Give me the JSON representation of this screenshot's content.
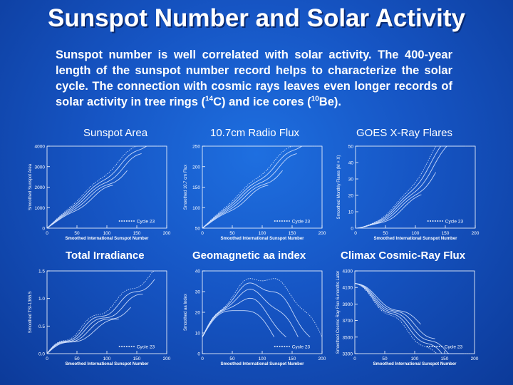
{
  "title": "Sunspot Number and Solar Activity",
  "paragraph": {
    "part1": "Sunspot number is well correlated with solar activity. The 400-year length of the sunspot number record helps to characterize the solar cycle. The connection with cosmic rays leaves even longer records of solar activity in tree rings (",
    "sup1": "14",
    "part2": "C) and ice cores (",
    "sup2": "10",
    "part3": "Be)."
  },
  "panels": [
    {
      "heading": "Sunspot Area",
      "ylabel": "Smoothed Sunspot Area",
      "xlabel": "Smoothed International Sunspot Number",
      "legend": "Cycle 23",
      "yticks": [
        "0",
        "1000",
        "2000",
        "3000",
        "4000"
      ],
      "xticks": [
        "0",
        "50",
        "100",
        "150",
        "200"
      ]
    },
    {
      "heading": "10.7cm Radio Flux",
      "ylabel": "Smoothed 10.7 cm Flux",
      "xlabel": "Smoothed International Sunspot Number",
      "legend": "Cycle 23",
      "yticks": [
        "50",
        "100",
        "150",
        "200",
        "250"
      ],
      "xticks": [
        "0",
        "50",
        "100",
        "150",
        "200"
      ]
    },
    {
      "heading": "GOES X-Ray Flares",
      "ylabel": "Smoothed Monthly Flares (M + X)",
      "xlabel": "Smoothed International Sunspot Number",
      "legend": "Cycle 23",
      "yticks": [
        "0",
        "10",
        "20",
        "30",
        "40",
        "50"
      ],
      "xticks": [
        "0",
        "50",
        "100",
        "150",
        "200"
      ]
    },
    {
      "heading": "Total Irradiance",
      "ylabel": "Smoothed TSI-1365.5",
      "xlabel": "Smoothed International Sunspot Number",
      "legend": "Cycle 23",
      "yticks": [
        "0.0",
        "0.5",
        "1.0",
        "1.5"
      ],
      "xticks": [
        "0",
        "50",
        "100",
        "150",
        "200"
      ]
    },
    {
      "heading": "Geomagnetic aa index",
      "ylabel": "Smoothed aa Index",
      "xlabel": "Smoothed International Sunspot Number",
      "legend": "Cycle 23",
      "yticks": [
        "0",
        "10",
        "20",
        "30",
        "40"
      ],
      "xticks": [
        "0",
        "50",
        "100",
        "150",
        "200"
      ]
    },
    {
      "heading": "Climax Cosmic-Ray Flux",
      "ylabel": "Smoothed Cosmic Ray Flux 6-months Later",
      "xlabel": "Smoothed International Sunspot Number",
      "legend": "Cycle 23",
      "yticks": [
        "3300",
        "3500",
        "3700",
        "3900",
        "4100",
        "4300"
      ],
      "xticks": [
        "0",
        "50",
        "100",
        "150",
        "200"
      ]
    }
  ],
  "colors": {
    "background": "#1655c4",
    "text": "#ffffff",
    "curve": "#d8e6ff"
  }
}
